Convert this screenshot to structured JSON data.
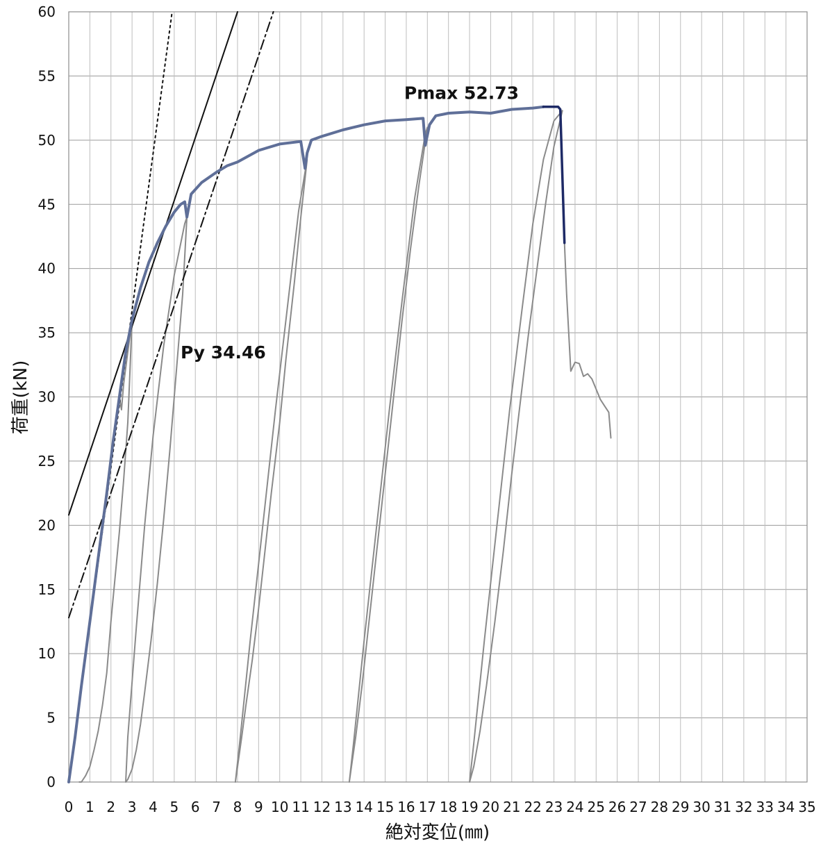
{
  "chart_data": {
    "type": "line",
    "xlabel": "絶対変位(㎜)",
    "ylabel": "荷重(kN)",
    "xlim": [
      0,
      35
    ],
    "ylim": [
      0,
      60
    ],
    "x_ticks": [
      "0",
      "1",
      "2",
      "3",
      "4",
      "5",
      "6",
      "7",
      "8",
      "9",
      "10",
      "11",
      "12",
      "13",
      "14",
      "15",
      "16",
      "17",
      "18",
      "19",
      "20",
      "21",
      "22",
      "23",
      "24",
      "25",
      "26",
      "27",
      "28",
      "29",
      "30",
      "31",
      "32",
      "33",
      "34",
      "35"
    ],
    "y_ticks": [
      "0",
      "5",
      "10",
      "15",
      "20",
      "25",
      "30",
      "35",
      "40",
      "45",
      "50",
      "55",
      "60"
    ],
    "grid": true,
    "annotations": [
      {
        "text": "Pmax 52.73",
        "x": 15.9,
        "y": 53.2
      },
      {
        "text": "Py 34.46",
        "x": 5.3,
        "y": 33.0
      }
    ],
    "series": [
      {
        "role": "envelope",
        "color": "#5f6f98",
        "x": [
          0,
          0.3,
          0.6,
          1.0,
          1.4,
          1.8,
          2.1,
          2.4,
          2.7,
          3.0,
          3.4,
          3.8,
          4.2,
          4.6,
          5.0,
          5.3,
          5.5,
          5.6,
          5.8,
          6.3,
          7.0,
          7.5,
          8.0,
          9.0,
          10.0,
          11.0,
          11.2,
          11.3,
          11.5,
          12.0,
          13.0,
          14.0,
          15.0,
          16.0,
          16.8,
          16.9,
          17.1,
          17.4,
          18.0,
          19.0,
          20.0,
          21.0,
          22.0,
          22.5
        ],
        "y": [
          0,
          3.5,
          7.5,
          12.5,
          17.5,
          22.5,
          26.5,
          30.0,
          33.5,
          36.0,
          38.5,
          40.5,
          42.0,
          43.3,
          44.4,
          45.0,
          45.2,
          44.0,
          45.8,
          46.7,
          47.5,
          48.0,
          48.3,
          49.2,
          49.7,
          49.9,
          47.8,
          49.0,
          50.0,
          50.3,
          50.8,
          51.2,
          51.5,
          51.6,
          51.7,
          49.6,
          51.2,
          51.9,
          52.1,
          52.2,
          52.1,
          52.4,
          52.5,
          52.6
        ]
      },
      {
        "role": "peak",
        "color": "#1e2a66",
        "x": [
          22.5,
          23.2,
          23.3,
          23.5
        ],
        "y": [
          52.6,
          52.6,
          52.4,
          42.0
        ]
      },
      {
        "role": "post-peak",
        "color": "#8a8a8a",
        "x": [
          23.5,
          23.6,
          23.8,
          24.0,
          24.2,
          24.4,
          24.6,
          24.8,
          25.0,
          25.2,
          25.4,
          25.6,
          25.7
        ],
        "y": [
          42.0,
          38.0,
          32.0,
          32.7,
          32.6,
          31.6,
          31.8,
          31.4,
          30.6,
          29.8,
          29.3,
          28.8,
          26.8
        ]
      },
      {
        "role": "cycle",
        "color": "#8a8a8a",
        "x": [
          2.4,
          2.5,
          2.6,
          2.8,
          3.0,
          2.9,
          2.8,
          2.6,
          2.4,
          2.2,
          2.0,
          1.9,
          1.8,
          1.6,
          1.4,
          1.2,
          1.0,
          0.8,
          0.6,
          0.5
        ],
        "y": [
          30.0,
          29.0,
          31.0,
          33.5,
          36.0,
          32.0,
          28.0,
          23.5,
          19.5,
          16.0,
          12.5,
          10.5,
          8.5,
          6.0,
          4.0,
          2.5,
          1.2,
          0.5,
          0.0,
          0.0
        ]
      },
      {
        "role": "cycle",
        "color": "#8a8a8a",
        "x": [
          5.6,
          5.4,
          5.1,
          4.8,
          4.5,
          4.2,
          3.9,
          3.6,
          3.4,
          3.2,
          3.0,
          2.8,
          2.7,
          2.8,
          3.2,
          3.6,
          4.0,
          4.5,
          5.0,
          5.5,
          5.6
        ],
        "y": [
          44.0,
          38.0,
          32.0,
          26.0,
          20.5,
          15.5,
          11.0,
          7.0,
          4.5,
          2.5,
          1.0,
          0.2,
          0.0,
          3.5,
          12.0,
          20.0,
          27.0,
          34.0,
          39.5,
          43.5,
          44.0
        ]
      },
      {
        "role": "cycle",
        "color": "#8a8a8a",
        "x": [
          11.3,
          11.0,
          10.7,
          10.3,
          10.0,
          9.6,
          9.3,
          9.0,
          8.7,
          8.4,
          8.2,
          8.0,
          7.9,
          8.1,
          8.6,
          9.2,
          9.8,
          10.4,
          10.9,
          11.3
        ],
        "y": [
          48.5,
          44.0,
          39.0,
          33.0,
          28.0,
          22.5,
          18.0,
          13.5,
          9.5,
          6.0,
          3.5,
          1.2,
          0.0,
          3.0,
          11.0,
          20.0,
          29.0,
          37.5,
          44.5,
          48.5
        ]
      },
      {
        "role": "cycle",
        "color": "#8a8a8a",
        "x": [
          17.0,
          16.6,
          16.2,
          15.8,
          15.4,
          15.0,
          14.6,
          14.2,
          13.9,
          13.6,
          13.4,
          13.3,
          13.5,
          14.0,
          14.6,
          15.2,
          15.8,
          16.4,
          16.9,
          17.0
        ],
        "y": [
          51.0,
          46.5,
          41.5,
          36.0,
          30.0,
          24.0,
          18.0,
          12.0,
          7.5,
          3.5,
          1.2,
          0.0,
          3.0,
          11.0,
          20.0,
          29.0,
          37.5,
          45.5,
          50.5,
          51.0
        ]
      },
      {
        "role": "cycle",
        "color": "#8a8a8a",
        "x": [
          23.4,
          23.0,
          22.6,
          22.2,
          21.8,
          21.4,
          21.0,
          20.6,
          20.2,
          19.8,
          19.5,
          19.2,
          19.0,
          19.2,
          19.7,
          20.3,
          20.9,
          21.5,
          22.0,
          22.5,
          23.0,
          23.4
        ],
        "y": [
          52.3,
          49.5,
          45.0,
          40.0,
          35.0,
          29.5,
          24.0,
          18.0,
          12.5,
          7.5,
          4.0,
          1.2,
          0.0,
          3.0,
          11.0,
          20.0,
          29.0,
          37.0,
          43.5,
          48.5,
          51.5,
          52.3
        ]
      },
      {
        "role": "tangent-initial",
        "color": "#111111",
        "style": "solid",
        "x": [
          0,
          8.0
        ],
        "y": [
          20.8,
          60.0
        ]
      },
      {
        "role": "tangent-dotted",
        "color": "#111111",
        "style": "dotted",
        "x": [
          0,
          4.9
        ],
        "y": [
          0,
          60.0
        ]
      },
      {
        "role": "secant-dashdot",
        "color": "#111111",
        "style": "dashdot",
        "x": [
          0,
          9.7
        ],
        "y": [
          12.8,
          60.0
        ]
      }
    ]
  }
}
